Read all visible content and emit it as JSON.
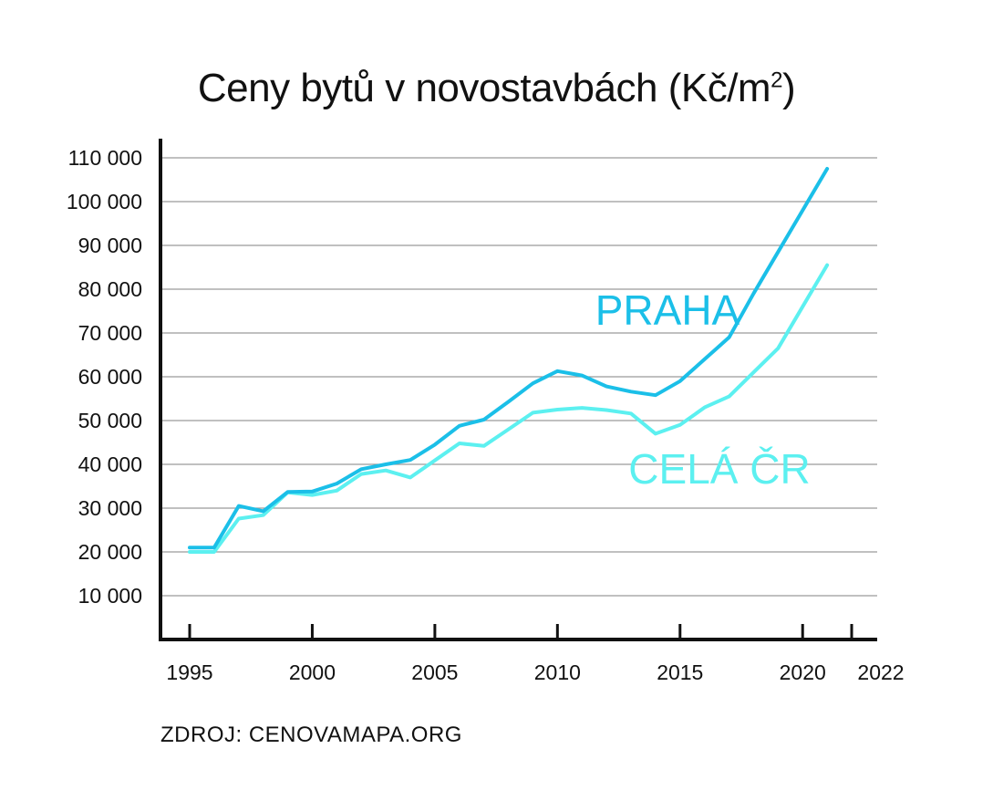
{
  "chart_data": {
    "type": "line",
    "title": "Ceny bytů v novostavbách (Kč/m",
    "title_superscript": "2",
    "title_suffix": ")",
    "xlabel": "",
    "ylabel": "",
    "xlim": [
      1995,
      2022
    ],
    "ylim": [
      0,
      110000
    ],
    "x_ticks": [
      1995,
      2000,
      2005,
      2010,
      2015,
      2020,
      2022
    ],
    "y_ticks": [
      10000,
      20000,
      30000,
      40000,
      50000,
      60000,
      70000,
      80000,
      90000,
      100000,
      110000
    ],
    "y_tick_labels": [
      "10 000",
      "20 000",
      "30 000",
      "40 000",
      "50 000",
      "60 000",
      "70 000",
      "80 000",
      "90 000",
      "100 000",
      "110 000"
    ],
    "grid": "horizontal",
    "series": [
      {
        "name": "PRAHA",
        "color": "#1bbfe8",
        "points": [
          [
            1995,
            21000
          ],
          [
            1996,
            21000
          ],
          [
            1997,
            30500
          ],
          [
            1998,
            29300
          ],
          [
            1999,
            33700
          ],
          [
            2000,
            33800
          ],
          [
            2001,
            35600
          ],
          [
            2002,
            38900
          ],
          [
            2003,
            40000
          ],
          [
            2004,
            41000
          ],
          [
            2005,
            44500
          ],
          [
            2006,
            48800
          ],
          [
            2007,
            50200
          ],
          [
            2008,
            54300
          ],
          [
            2009,
            58500
          ],
          [
            2010,
            61300
          ],
          [
            2011,
            60300
          ],
          [
            2012,
            57800
          ],
          [
            2013,
            56600
          ],
          [
            2014,
            55800
          ],
          [
            2015,
            59000
          ],
          [
            2016,
            64000
          ],
          [
            2017,
            69000
          ],
          [
            2018,
            79000
          ],
          [
            2019,
            88500
          ],
          [
            2020,
            98000
          ],
          [
            2021,
            107500
          ]
        ]
      },
      {
        "name": "CELÁ ČR",
        "color": "#5cf0f0",
        "points": [
          [
            1995,
            20000
          ],
          [
            1996,
            20000
          ],
          [
            1997,
            27600
          ],
          [
            1998,
            28400
          ],
          [
            1999,
            33600
          ],
          [
            2000,
            33000
          ],
          [
            2001,
            34000
          ],
          [
            2002,
            37800
          ],
          [
            2003,
            38600
          ],
          [
            2004,
            37000
          ],
          [
            2005,
            40900
          ],
          [
            2006,
            44800
          ],
          [
            2007,
            44200
          ],
          [
            2008,
            48000
          ],
          [
            2009,
            51800
          ],
          [
            2010,
            52500
          ],
          [
            2011,
            52900
          ],
          [
            2012,
            52400
          ],
          [
            2013,
            51600
          ],
          [
            2014,
            47000
          ],
          [
            2015,
            49000
          ],
          [
            2016,
            53000
          ],
          [
            2017,
            55500
          ],
          [
            2018,
            61000
          ],
          [
            2019,
            66500
          ],
          [
            2020,
            76000
          ],
          [
            2021,
            85500
          ]
        ]
      }
    ]
  },
  "source": "ZDROJ: CENOVAMAPA.ORG"
}
